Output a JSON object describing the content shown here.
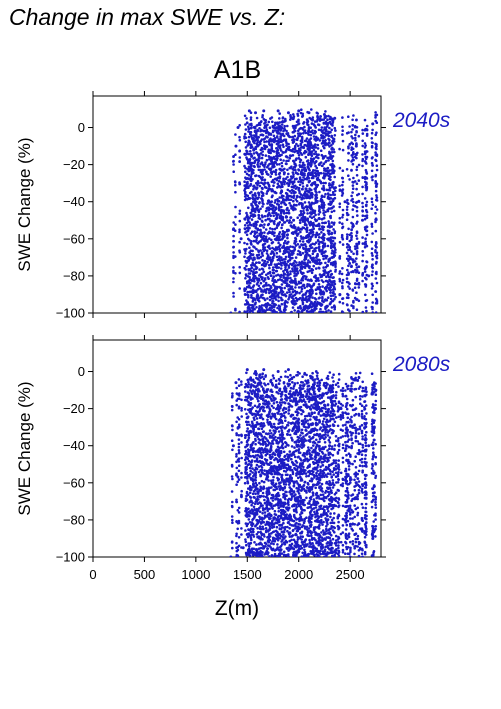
{
  "figure": {
    "title": "Change in max SWE vs. Z:",
    "scenario": "A1B"
  },
  "colors": {
    "points": "#1c1cc4",
    "period_label": "#1c1cc4"
  },
  "chart_data": [
    {
      "type": "scatter",
      "period_label": "2040s",
      "xlabel": "",
      "ylabel": "SWE Change (%)",
      "xlim": [
        0,
        2800
      ],
      "ylim": [
        -100,
        17
      ],
      "xticks": [
        0,
        500,
        1000,
        1500,
        2000,
        2500
      ],
      "yticks": [
        0,
        -20,
        -40,
        -60,
        -80,
        -100
      ],
      "ytick_labels": [
        "0",
        "−20",
        "−40",
        "−60",
        "−80",
        "−100"
      ],
      "x_range_of_points": [
        1330,
        2760
      ],
      "y_range_of_points": [
        -100,
        10
      ],
      "series": [
        {
          "x": [
            1340,
            1365,
            1390,
            1410,
            1440,
            1480,
            1520,
            1550,
            1580,
            1620,
            1660,
            1700,
            1750,
            1800,
            1850,
            1900,
            1950,
            2000,
            2050,
            2100,
            2150,
            2200,
            2250,
            2300,
            2350,
            2400,
            2450,
            2500,
            2560,
            2620,
            2680,
            2720,
            2750
          ],
          "y": [
            -100,
            -55,
            -10,
            0,
            -60,
            -90,
            9,
            -45,
            8,
            -99,
            9,
            -30,
            -70,
            9,
            -100,
            8,
            -50,
            9,
            -85,
            8,
            -95,
            -20,
            7,
            -60,
            5,
            -90,
            -40,
            -70,
            -10,
            -50,
            -80,
            2,
            -30
          ]
        }
      ]
    },
    {
      "type": "scatter",
      "period_label": "2080s",
      "xlabel": "Z(m)",
      "ylabel": "SWE Change (%)",
      "xlim": [
        0,
        2800
      ],
      "ylim": [
        -100,
        17
      ],
      "xticks": [
        0,
        500,
        1000,
        1500,
        2000,
        2500
      ],
      "xtick_labels": [
        "0",
        "500",
        "1000",
        "1500",
        "2000",
        "2500"
      ],
      "yticks": [
        0,
        -20,
        -40,
        -60,
        -80,
        -100
      ],
      "ytick_labels": [
        "0",
        "−20",
        "−40",
        "−60",
        "−80",
        "−100"
      ],
      "x_range_of_points": [
        1330,
        2760
      ],
      "y_range_of_points": [
        -100,
        1
      ],
      "series": [
        {
          "x": [
            1340,
            1365,
            1390,
            1420,
            1460,
            1500,
            1540,
            1580,
            1620,
            1660,
            1700,
            1750,
            1800,
            1850,
            1900,
            1950,
            2000,
            2050,
            2100,
            2150,
            2200,
            2250,
            2300,
            2350,
            2400,
            2450,
            2500,
            2560,
            2620,
            2680,
            2720,
            2750
          ],
          "y": [
            -100,
            -40,
            -6,
            -30,
            -95,
            1,
            -70,
            0,
            -100,
            1,
            -50,
            -100,
            0,
            -80,
            1,
            -100,
            -30,
            -100,
            -10,
            -90,
            -60,
            -100,
            -40,
            -100,
            -20,
            -80,
            -100,
            -60,
            -100,
            -40,
            -90,
            -10
          ]
        }
      ]
    }
  ]
}
